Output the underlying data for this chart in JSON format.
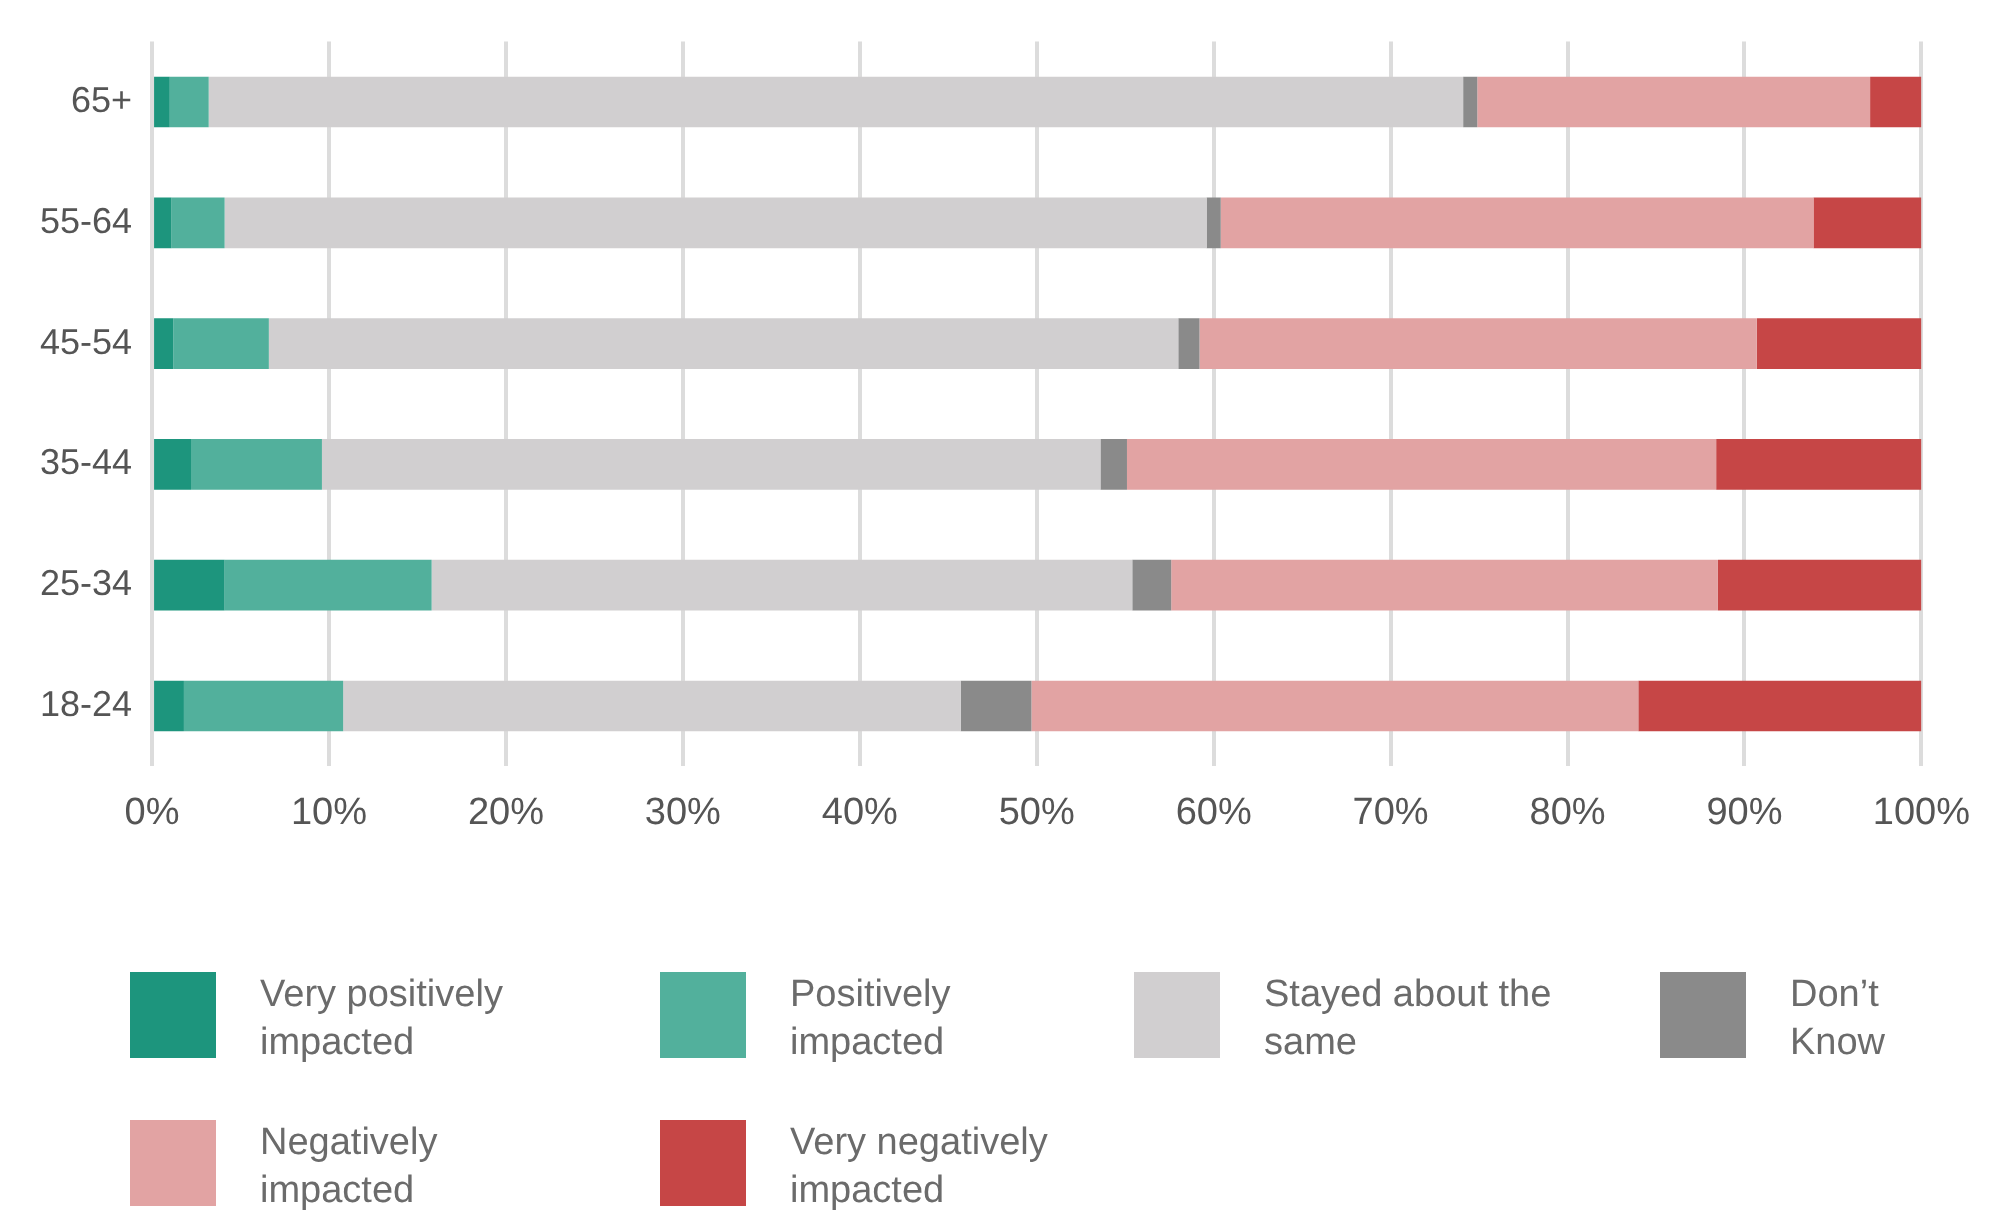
{
  "chart_data": {
    "type": "bar",
    "orientation": "horizontal",
    "stacked": true,
    "grid": "x",
    "legend": "bottom",
    "categories": [
      "65+",
      "55-64",
      "45-54",
      "35-44",
      "25-34",
      "18-24"
    ],
    "series": [
      {
        "name": "Very positively impacted",
        "color": "#1d957d",
        "values": [
          1.0,
          1.1,
          1.2,
          2.2,
          4.1,
          1.8
        ]
      },
      {
        "name": "Positively impacted",
        "color": "#52b09c",
        "values": [
          2.2,
          3.0,
          5.4,
          7.4,
          11.7,
          9.0
        ]
      },
      {
        "name": "Stayed about the same",
        "color": "#d1cfd0",
        "values": [
          70.9,
          55.5,
          51.4,
          44.0,
          39.6,
          34.9
        ]
      },
      {
        "name": "Don’t Know",
        "color": "#8a8a8a",
        "values": [
          0.8,
          0.8,
          1.2,
          1.5,
          2.2,
          4.0
        ]
      },
      {
        "name": "Negatively impacted",
        "color": "#e2a3a3",
        "values": [
          22.2,
          33.5,
          31.5,
          33.3,
          30.9,
          34.3
        ]
      },
      {
        "name": "Very negatively impacted",
        "color": "#c64646",
        "values": [
          2.9,
          6.1,
          9.3,
          11.6,
          11.5,
          16.0
        ]
      }
    ],
    "xlim": [
      0,
      100
    ],
    "xticks": [
      {
        "value": 0,
        "label": "0%"
      },
      {
        "value": 10,
        "label": "10%"
      },
      {
        "value": 20,
        "label": "20%"
      },
      {
        "value": 30,
        "label": "30%"
      },
      {
        "value": 40,
        "label": "40%"
      },
      {
        "value": 50,
        "label": "50%"
      },
      {
        "value": 60,
        "label": "60%"
      },
      {
        "value": 70,
        "label": "70%"
      },
      {
        "value": 80,
        "label": "80%"
      },
      {
        "value": 90,
        "label": "90%"
      },
      {
        "value": 100,
        "label": "100%"
      }
    ]
  }
}
